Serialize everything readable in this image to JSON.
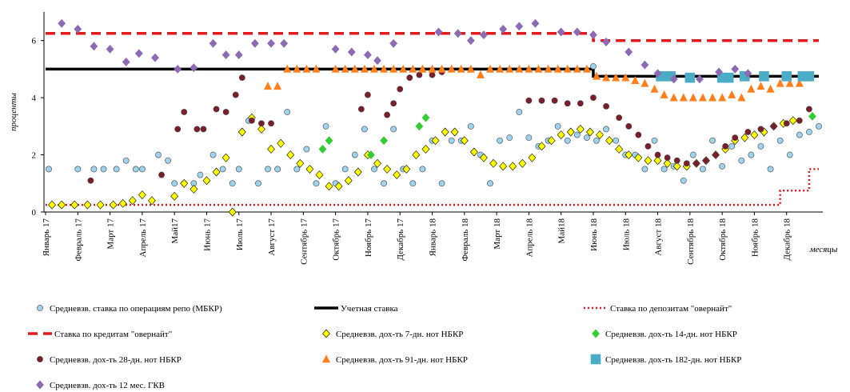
{
  "chart_data": {
    "type": "scatter",
    "ylabel": "проценты",
    "xlabel": "месяцы",
    "xlim": [
      0,
      24
    ],
    "ylim": [
      0,
      7
    ],
    "yticks": [
      0,
      2,
      4,
      6
    ],
    "xticks": [
      {
        "value": 0,
        "label": "Январь 17"
      },
      {
        "value": 1,
        "label": "Февраль 17"
      },
      {
        "value": 2,
        "label": "Март 17"
      },
      {
        "value": 3,
        "label": "Апрель 17"
      },
      {
        "value": 4,
        "label": "Май17"
      },
      {
        "value": 5,
        "label": "Июнь 17"
      },
      {
        "value": 6,
        "label": "Июль 17"
      },
      {
        "value": 7,
        "label": "Август 17"
      },
      {
        "value": 8,
        "label": "Сентябрь 17"
      },
      {
        "value": 9,
        "label": "Октябрь 17"
      },
      {
        "value": 10,
        "label": "Ноябрь 17"
      },
      {
        "value": 11,
        "label": "Декабрь 17"
      },
      {
        "value": 12,
        "label": "Январь 18"
      },
      {
        "value": 13,
        "label": "Февраль 18"
      },
      {
        "value": 14,
        "label": "Март 18"
      },
      {
        "value": 15,
        "label": "Апрель 18"
      },
      {
        "value": 16,
        "label": "Май18"
      },
      {
        "value": 17,
        "label": "Июнь 18"
      },
      {
        "value": 18,
        "label": "Июль 18"
      },
      {
        "value": 19,
        "label": "Август 18"
      },
      {
        "value": 20,
        "label": "Сентябрь 18"
      },
      {
        "value": 21,
        "label": "Октябрь 18"
      },
      {
        "value": 22,
        "label": "Ноябрь 18"
      },
      {
        "value": 23,
        "label": "Декабрь 18"
      }
    ],
    "series": [
      {
        "name": "Средневзв. ставка по операциям репо (МБКР)",
        "color": "#9dd3ee",
        "marker": "circle",
        "x": [
          0.1,
          1.0,
          1.5,
          1.8,
          2.2,
          2.5,
          2.8,
          3.0,
          3.5,
          3.8,
          4.0,
          4.3,
          4.6,
          4.8,
          5.2,
          5.5,
          5.8,
          6.0,
          6.3,
          6.6,
          6.9,
          7.2,
          7.5,
          7.8,
          8.1,
          8.4,
          8.7,
          9.0,
          9.3,
          9.6,
          9.9,
          10.2,
          10.5,
          10.8,
          11.1,
          11.4,
          11.7,
          12.0,
          12.3,
          12.6,
          12.9,
          13.2,
          13.5,
          13.8,
          14.1,
          14.4,
          14.7,
          15.0,
          15.3,
          15.6,
          15.9,
          16.2,
          16.5,
          16.8,
          17.0,
          17.1,
          17.4,
          17.7,
          18.0,
          18.3,
          18.6,
          18.9,
          19.2,
          19.5,
          19.8,
          20.1,
          20.4,
          20.7,
          21.0,
          21.3,
          21.6,
          21.9,
          22.2,
          22.5,
          22.8,
          23.1,
          23.4,
          23.7,
          24.0
        ],
        "values": [
          1.5,
          1.5,
          1.5,
          1.5,
          1.5,
          1.8,
          1.5,
          1.5,
          2.0,
          1.8,
          1.0,
          1.0,
          1.0,
          1.3,
          2.0,
          1.5,
          1.0,
          1.5,
          3.2,
          1.0,
          1.5,
          1.5,
          3.5,
          1.5,
          2.2,
          1.0,
          3.0,
          1.0,
          1.5,
          2.0,
          2.9,
          1.5,
          1.0,
          2.9,
          1.5,
          1.0,
          1.5,
          2.5,
          1.0,
          2.5,
          2.5,
          3.0,
          2.0,
          1.0,
          2.5,
          2.6,
          3.5,
          2.6,
          2.3,
          2.5,
          3.0,
          2.5,
          2.7,
          2.6,
          5.1,
          2.5,
          2.9,
          2.5,
          2.0,
          2.0,
          1.5,
          2.5,
          1.5,
          1.6,
          1.1,
          2.0,
          1.5,
          2.5,
          1.6,
          2.3,
          1.8,
          2.0,
          2.3,
          1.5,
          2.5,
          2.0,
          2.7,
          2.8,
          3.0
        ]
      },
      {
        "name": "Учетная ставка",
        "color": "#000000",
        "line": "solid",
        "x": [
          0,
          17,
          17,
          24
        ],
        "values": [
          5,
          5,
          4.75,
          4.75
        ]
      },
      {
        "name": "Ставка по депозитам \"овернайт\"",
        "color": "#e31a1c",
        "line": "dot",
        "x": [
          0,
          22.8,
          22.8,
          23.7,
          23.7,
          24
        ],
        "values": [
          0.25,
          0.25,
          0.75,
          0.75,
          1.5,
          1.5
        ]
      },
      {
        "name": "Ставка по кредитам \"овернайт\"",
        "color": "#e31a1c",
        "line": "dash",
        "x": [
          0,
          17,
          17,
          24
        ],
        "values": [
          6.25,
          6.25,
          6,
          6
        ]
      },
      {
        "name": "Средневзв. дох-ть 7-дн. нот НБКР",
        "color": "#ffff00",
        "marker": "diamond",
        "x": [
          0.2,
          0.5,
          0.9,
          1.3,
          1.7,
          2.1,
          2.4,
          2.7,
          3.0,
          3.3,
          4.0,
          4.3,
          4.6,
          5.0,
          5.3,
          5.6,
          5.8,
          6.1,
          6.4,
          6.7,
          7.0,
          7.3,
          7.6,
          7.9,
          8.2,
          8.5,
          8.8,
          9.1,
          9.4,
          9.7,
          10.0,
          10.3,
          10.6,
          10.9,
          11.2,
          11.5,
          11.8,
          12.1,
          12.4,
          12.7,
          13.0,
          13.3,
          13.6,
          13.9,
          14.2,
          14.5,
          14.8,
          15.1,
          15.4,
          15.7,
          16.0,
          16.3,
          16.6,
          16.9,
          17.2,
          17.5,
          17.8,
          18.1,
          18.4,
          18.7,
          19.0,
          19.3,
          19.6,
          19.9,
          20.2,
          20.5,
          20.8,
          21.1,
          21.4,
          21.7,
          22.0,
          22.3,
          22.6,
          22.9,
          23.2
        ],
        "values": [
          0.25,
          0.25,
          0.25,
          0.25,
          0.25,
          0.25,
          0.3,
          0.4,
          0.6,
          0.4,
          0.55,
          1.0,
          0.8,
          1.1,
          1.4,
          1.9,
          0,
          2.8,
          3.3,
          2.9,
          2.2,
          2.4,
          2.0,
          1.7,
          1.5,
          1.3,
          0.9,
          0.9,
          1.1,
          1.4,
          2.0,
          1.7,
          1.5,
          1.3,
          1.5,
          2.0,
          2.2,
          2.5,
          2.8,
          2.8,
          2.5,
          2.1,
          1.9,
          1.7,
          1.6,
          1.6,
          1.7,
          1.9,
          2.3,
          2.5,
          2.7,
          2.8,
          2.9,
          2.8,
          2.7,
          2.5,
          2.2,
          2.0,
          1.9,
          1.8,
          1.8,
          1.7,
          1.6,
          1.6,
          1.7,
          1.8,
          2.0,
          2.2,
          2.5,
          2.6,
          2.7,
          2.8,
          3.0,
          3.1,
          3.2
        ]
      },
      {
        "name": "Средневзв. дох-ть 14-дн. нот НБКР",
        "color": "#33cc33",
        "marker": "diamond",
        "x": [
          8.6,
          8.8,
          10.1,
          10.5,
          11.6,
          11.8,
          23.8
        ],
        "values": [
          2.2,
          2.5,
          2.0,
          2.5,
          3.0,
          3.3,
          3.35
        ]
      },
      {
        "name": "Средневзв. дох-ть 28-дн. нот НБКР",
        "color": "#7b1e2a",
        "marker": "circle",
        "x": [
          1.4,
          3.6,
          4.1,
          4.3,
          4.7,
          4.9,
          5.3,
          5.6,
          5.9,
          6.1,
          6.4,
          6.7,
          7.0,
          9.8,
          10.0,
          10.6,
          10.8,
          11.0,
          11.3,
          11.6,
          12.0,
          12.3,
          15.0,
          15.4,
          15.8,
          16.2,
          16.6,
          17.0,
          17.4,
          17.8,
          18.1,
          18.4,
          18.7,
          19.0,
          19.3,
          19.6,
          19.9,
          20.2,
          20.5,
          20.8,
          21.1,
          21.4,
          21.8,
          22.2,
          22.6,
          23.0,
          23.4,
          23.7
        ],
        "values": [
          1.1,
          1.3,
          2.9,
          3.5,
          2.9,
          2.9,
          3.6,
          3.5,
          4.1,
          4.7,
          3.2,
          3.1,
          3.1,
          3.6,
          4.1,
          3.4,
          3.8,
          4.3,
          4.7,
          4.8,
          4.8,
          4.9,
          3.9,
          3.9,
          3.9,
          3.8,
          3.8,
          4.0,
          3.7,
          3.3,
          3.0,
          2.7,
          2.3,
          2.0,
          1.9,
          1.8,
          1.7,
          1.7,
          1.8,
          2.0,
          2.3,
          2.6,
          2.8,
          2.9,
          3.0,
          3.1,
          3.2,
          3.6
        ]
      },
      {
        "name": "Средневзв. дох-ть 91-дн. нот НБКР",
        "color": "#ff7f1a",
        "marker": "triangle",
        "x": [
          6.9,
          7.2,
          7.5,
          7.8,
          8.1,
          8.4,
          9.0,
          9.3,
          9.6,
          9.9,
          10.2,
          10.5,
          10.8,
          11.1,
          11.4,
          11.7,
          12.0,
          12.3,
          12.6,
          12.9,
          13.2,
          13.5,
          13.8,
          14.1,
          14.4,
          14.7,
          15.0,
          15.3,
          15.6,
          15.9,
          16.2,
          16.5,
          16.8,
          17.1,
          17.4,
          17.7,
          18.0,
          18.3,
          18.6,
          18.9,
          19.2,
          19.5,
          19.8,
          20.1,
          20.4,
          20.7,
          21.0,
          21.3,
          21.6,
          21.9,
          22.2,
          22.5,
          22.8,
          23.1,
          23.4
        ],
        "values": [
          4.4,
          4.4,
          5.0,
          5.0,
          5.0,
          5.0,
          5.0,
          5.0,
          5.0,
          5.0,
          5.0,
          5.0,
          5.0,
          5.0,
          5.0,
          5.0,
          5.0,
          5.0,
          5.0,
          5.0,
          5.0,
          4.8,
          5.0,
          5.0,
          5.0,
          5.0,
          5.0,
          5.0,
          5.0,
          5.0,
          5.0,
          5.0,
          5.0,
          4.75,
          4.7,
          4.7,
          4.7,
          4.6,
          4.5,
          4.3,
          4.1,
          4.0,
          4.0,
          4.0,
          4.0,
          4.0,
          4.0,
          4.1,
          4.0,
          4.3,
          4.4,
          4.3,
          4.5,
          4.5,
          4.5
        ]
      },
      {
        "name": "Средневзв. дох-ть 182-дн. нот НБКР",
        "color": "#4bacc6",
        "marker": "square",
        "x": [
          19.1,
          19.4,
          20.0,
          21.0,
          21.2,
          21.7,
          22.3,
          23.0,
          23.5,
          23.7
        ],
        "values": [
          4.75,
          4.75,
          4.7,
          4.7,
          4.7,
          4.75,
          4.75,
          4.75,
          4.75,
          4.75
        ]
      },
      {
        "name": "Средневзв. дох-ть 12 мес. ГКВ",
        "color": "#8c6ab4",
        "marker": "diamond",
        "x": [
          0.5,
          1.0,
          1.5,
          2.0,
          2.5,
          2.9,
          3.4,
          4.1,
          4.6,
          5.2,
          5.6,
          6.0,
          6.5,
          7.0,
          7.4,
          9.0,
          9.5,
          10.0,
          10.3,
          10.8,
          12.2,
          12.8,
          13.2,
          13.6,
          14.2,
          14.7,
          15.2,
          16.0,
          16.5,
          17.0,
          17.4,
          18.1,
          18.6,
          19.0,
          19.5,
          20.3,
          20.9,
          21.4,
          21.8
        ],
        "values": [
          6.6,
          6.4,
          5.8,
          5.7,
          5.25,
          5.55,
          5.4,
          5.0,
          5.05,
          5.9,
          5.5,
          5.5,
          5.9,
          5.9,
          5.9,
          5.7,
          5.6,
          5.5,
          5.3,
          5.9,
          6.3,
          6.25,
          6.0,
          6.2,
          6.4,
          6.5,
          6.6,
          6.3,
          6.3,
          6.2,
          5.95,
          5.6,
          5.15,
          4.85,
          4.65,
          4.65,
          4.9,
          5.0,
          4.85
        ]
      }
    ]
  }
}
